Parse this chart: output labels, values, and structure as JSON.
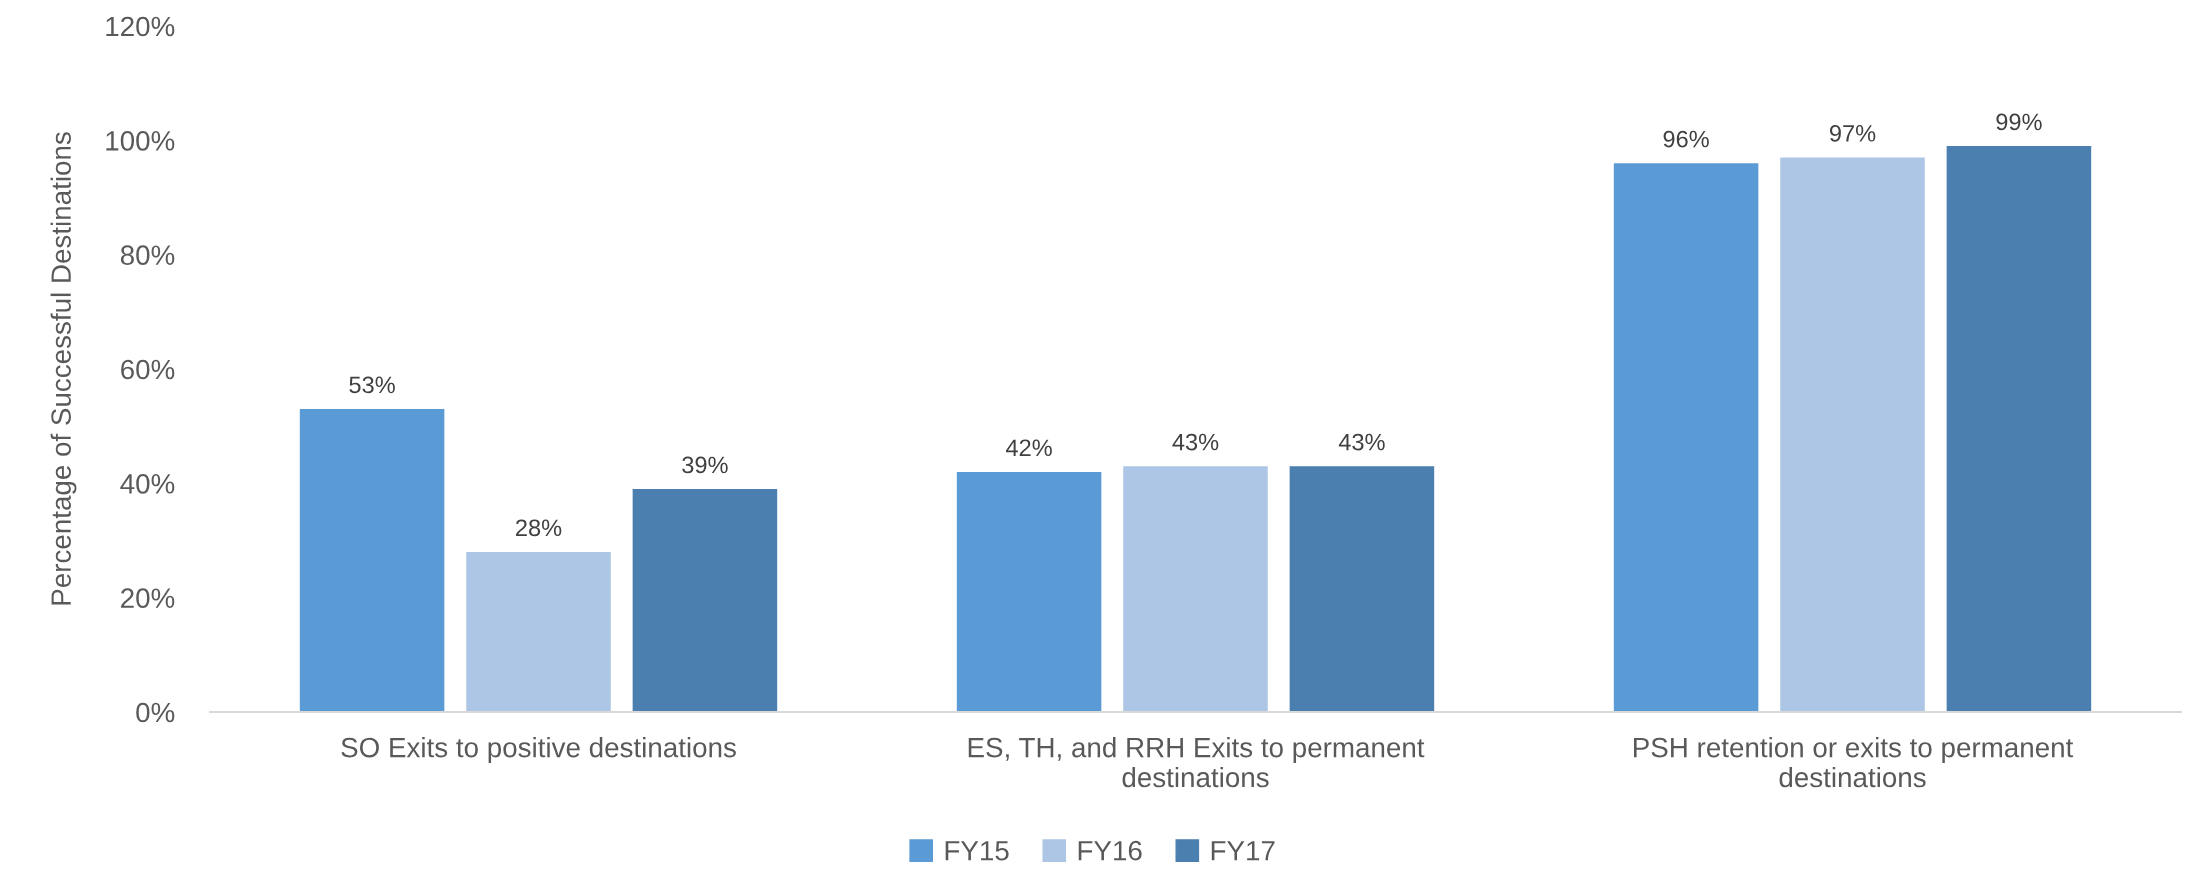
{
  "chart_data": {
    "type": "bar",
    "ylabel": "Percentage of Successful Destinations",
    "categories": [
      "SO Exits to positive destinations",
      "ES, TH, and RRH Exits to permanent\ndestinations",
      "PSH retention or exits to permanent\ndestinations"
    ],
    "series": [
      {
        "name": "FY15",
        "color": "#5b9bd5",
        "values": [
          53,
          42,
          96
        ],
        "value_labels": [
          "53%",
          "42%",
          "96%"
        ]
      },
      {
        "name": "FY16",
        "color": "#adc6e5",
        "values": [
          28,
          43,
          97
        ],
        "value_labels": [
          "28%",
          "43%",
          "97%"
        ]
      },
      {
        "name": "FY17",
        "color": "#4a7fb0",
        "values": [
          39,
          43,
          99
        ],
        "value_labels": [
          "39%",
          "43%",
          "99%"
        ]
      }
    ],
    "ylim": [
      0,
      120
    ],
    "yticks": [
      {
        "value": 0,
        "label": "0%"
      },
      {
        "value": 20,
        "label": "20%"
      },
      {
        "value": 40,
        "label": "40%"
      },
      {
        "value": 60,
        "label": "60%"
      },
      {
        "value": 80,
        "label": "80%"
      },
      {
        "value": 100,
        "label": "100%"
      },
      {
        "value": 120,
        "label": "120%"
      }
    ],
    "grid": false,
    "legend": "bottom"
  }
}
